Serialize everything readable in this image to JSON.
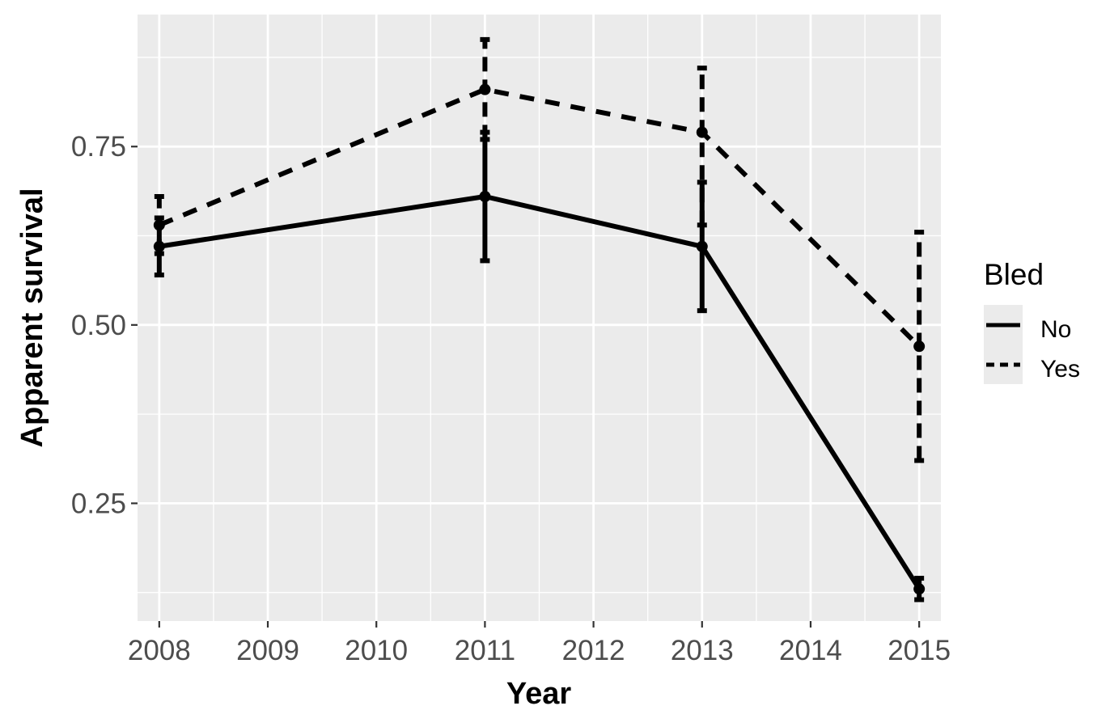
{
  "chart_data": {
    "type": "line",
    "xlabel": "Year",
    "ylabel": "Apparent survival",
    "x_ticks": [
      "2008",
      "2009",
      "2010",
      "2011",
      "2012",
      "2013",
      "2014",
      "2015"
    ],
    "y_ticks": [
      "0.25",
      "0.50",
      "0.75"
    ],
    "xlim": [
      2007.8,
      2015.2
    ],
    "ylim": [
      0.085,
      0.935
    ],
    "grid": true,
    "legend": {
      "title": "Bled",
      "placement": "right"
    },
    "series": [
      {
        "name": "No",
        "line_style": "solid",
        "points": [
          {
            "x": 2008,
            "y": 0.61,
            "lower": 0.57,
            "upper": 0.65
          },
          {
            "x": 2011,
            "y": 0.68,
            "lower": 0.59,
            "upper": 0.77
          },
          {
            "x": 2013,
            "y": 0.61,
            "lower": 0.52,
            "upper": 0.7
          },
          {
            "x": 2015,
            "y": 0.13,
            "lower": 0.115,
            "upper": 0.145
          }
        ]
      },
      {
        "name": "Yes",
        "line_style": "dashed",
        "points": [
          {
            "x": 2008,
            "y": 0.64,
            "lower": 0.6,
            "upper": 0.68
          },
          {
            "x": 2011,
            "y": 0.83,
            "lower": 0.76,
            "upper": 0.9
          },
          {
            "x": 2013,
            "y": 0.77,
            "lower": 0.64,
            "upper": 0.86
          },
          {
            "x": 2015,
            "y": 0.47,
            "lower": 0.31,
            "upper": 0.63
          }
        ]
      }
    ]
  },
  "colors": {
    "panel_background": "#ebebeb",
    "grid_line": "#ffffff",
    "series_line": "#000000",
    "tick_text": "#4d4d4d"
  }
}
